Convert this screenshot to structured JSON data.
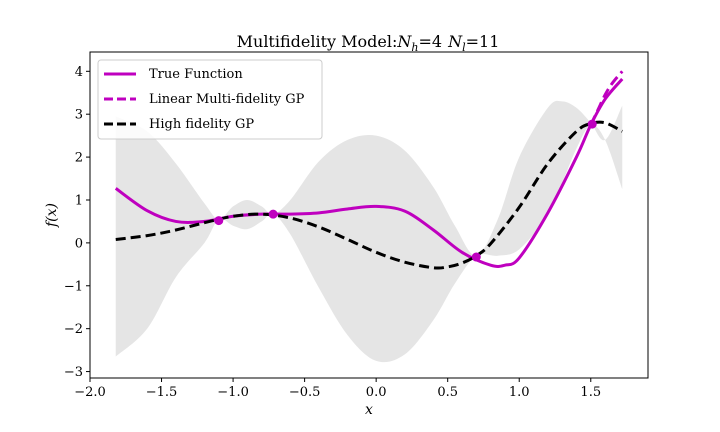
{
  "chart_data": {
    "type": "line",
    "title": "Multifidelity Model:$N_h$=4 $N_l$=11",
    "title_parts": {
      "prefix": "Multifidelity Model:",
      "nh_sym": "N",
      "nh_sub": "h",
      "nh_val": "=4",
      "nl_sym": "N",
      "nl_sub": "l",
      "nl_val": "=11"
    },
    "xlabel": "x",
    "ylabel": "f(x)",
    "xlim": [
      -2.0,
      1.9
    ],
    "ylim": [
      -3.15,
      4.45
    ],
    "xticks": [
      -2.0,
      -1.5,
      -1.0,
      -0.5,
      0.0,
      0.5,
      1.0,
      1.5
    ],
    "xtick_labels": [
      "−2.0",
      "−1.5",
      "−1.0",
      "−0.5",
      "0.0",
      "0.5",
      "1.0",
      "1.5"
    ],
    "yticks": [
      -3,
      -2,
      -1,
      0,
      1,
      2,
      3,
      4
    ],
    "ytick_labels": [
      "−3",
      "−2",
      "−1",
      "0",
      "1",
      "2",
      "3",
      "4"
    ],
    "legend_position": "top-left",
    "series": [
      {
        "name": "True Function",
        "color": "#bf00bf",
        "style": "solid",
        "x": [
          -1.82,
          -1.6,
          -1.4,
          -1.2,
          -1.0,
          -0.8,
          -0.6,
          -0.4,
          -0.2,
          0.0,
          0.2,
          0.4,
          0.6,
          0.8,
          0.9,
          1.0,
          1.2,
          1.4,
          1.5,
          1.6,
          1.72
        ],
        "y": [
          1.27,
          0.75,
          0.5,
          0.5,
          0.62,
          0.67,
          0.67,
          0.7,
          0.79,
          0.85,
          0.74,
          0.3,
          -0.22,
          -0.52,
          -0.52,
          -0.35,
          0.7,
          2.0,
          2.75,
          3.35,
          3.82
        ]
      },
      {
        "name": "Linear Multi-fidelity GP",
        "color": "#bf00bf",
        "style": "dashed",
        "x": [
          1.5,
          1.55,
          1.6,
          1.65,
          1.72
        ],
        "y": [
          2.75,
          3.1,
          3.45,
          3.72,
          4.0
        ]
      },
      {
        "name": "High fidelity GP",
        "color": "#000000",
        "style": "dashed",
        "x": [
          -1.82,
          -1.6,
          -1.4,
          -1.2,
          -1.0,
          -0.8,
          -0.6,
          -0.4,
          -0.2,
          0.0,
          0.2,
          0.4,
          0.5,
          0.6,
          0.7,
          0.8,
          1.0,
          1.2,
          1.4,
          1.5,
          1.6,
          1.72
        ],
        "y": [
          0.08,
          0.17,
          0.3,
          0.47,
          0.62,
          0.67,
          0.58,
          0.37,
          0.08,
          -0.22,
          -0.45,
          -0.58,
          -0.56,
          -0.47,
          -0.3,
          -0.02,
          0.83,
          1.85,
          2.6,
          2.78,
          2.8,
          2.6
        ]
      }
    ],
    "confidence_band": {
      "color": "#e5e5e5",
      "x": [
        -1.82,
        -1.6,
        -1.4,
        -1.2,
        -1.1,
        -1.0,
        -0.9,
        -0.8,
        -0.72,
        -0.6,
        -0.4,
        -0.2,
        0.0,
        0.2,
        0.4,
        0.55,
        0.7,
        0.85,
        1.0,
        1.2,
        1.3,
        1.4,
        1.5,
        1.6,
        1.72
      ],
      "upper": [
        2.95,
        2.6,
        1.85,
        0.92,
        0.55,
        0.85,
        1.0,
        0.85,
        0.67,
        1.0,
        1.9,
        2.4,
        2.5,
        2.15,
        1.3,
        0.4,
        -0.3,
        0.55,
        2.0,
        3.15,
        3.3,
        3.15,
        2.8,
        2.4,
        3.2
      ],
      "lower": [
        -2.65,
        -2.0,
        -0.8,
        0.0,
        0.55,
        0.4,
        0.32,
        0.5,
        0.67,
        0.2,
        -1.05,
        -2.15,
        -2.75,
        -2.6,
        -1.8,
        -0.95,
        -0.3,
        -0.3,
        -0.15,
        0.65,
        1.4,
        2.2,
        2.75,
        2.4,
        1.25
      ]
    },
    "observations": {
      "color": "#bf00bf",
      "x": [
        -1.1,
        -0.72,
        0.7,
        1.51
      ],
      "y": [
        0.52,
        0.67,
        -0.33,
        2.77
      ]
    }
  }
}
